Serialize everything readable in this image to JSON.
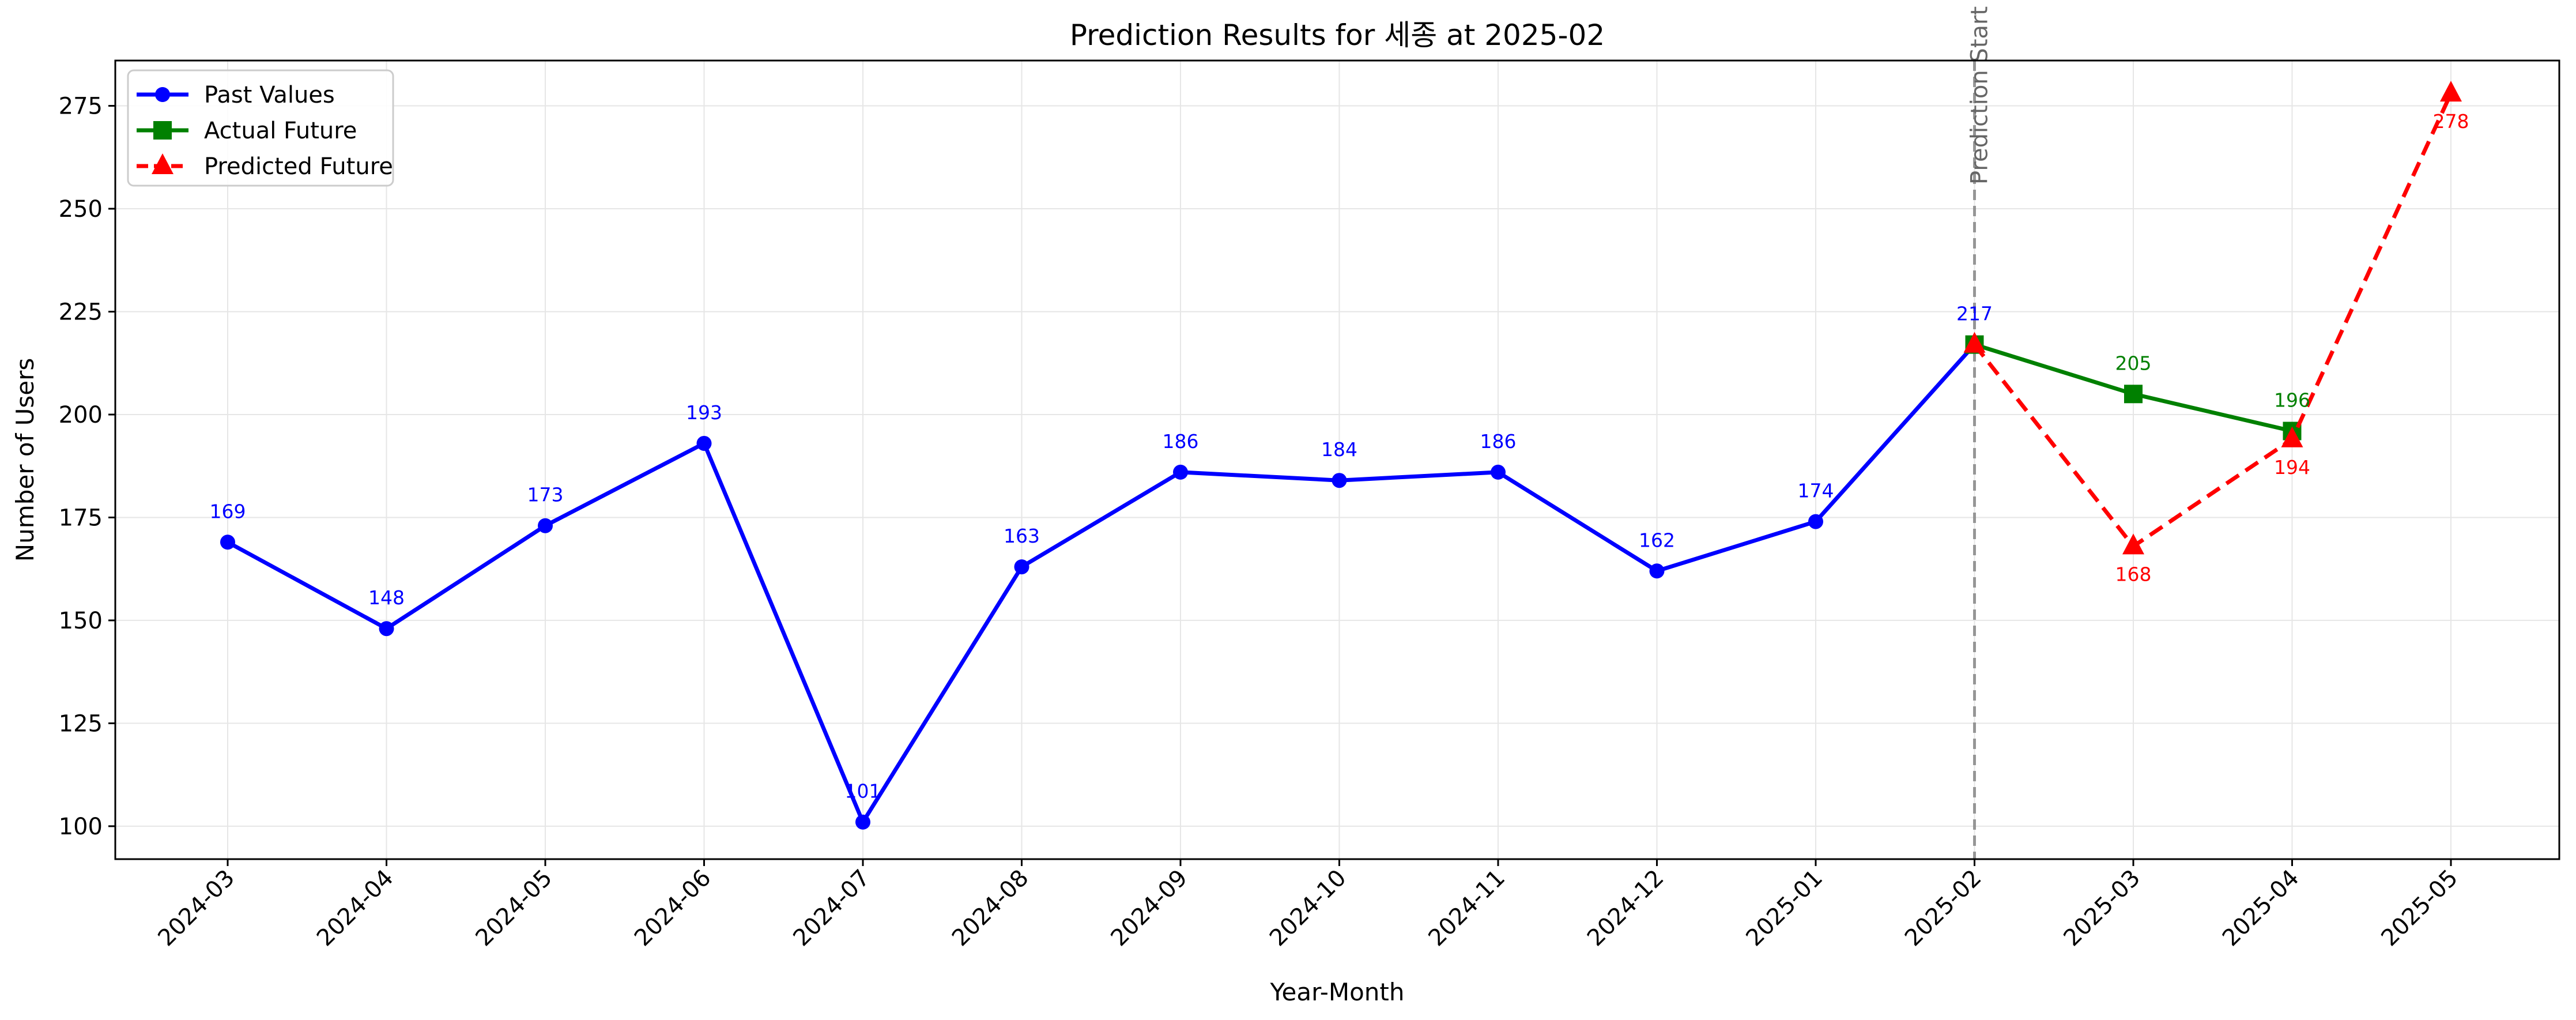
{
  "chart_data": {
    "type": "line",
    "title": "Prediction Results for 세종 at 2025-02",
    "xlabel": "Year-Month",
    "ylabel": "Number of Users",
    "categories": [
      "2024-03",
      "2024-04",
      "2024-05",
      "2024-06",
      "2024-07",
      "2024-08",
      "2024-09",
      "2024-10",
      "2024-11",
      "2024-12",
      "2025-01",
      "2025-02",
      "2025-03",
      "2025-04",
      "2025-05"
    ],
    "ylim": [
      92,
      286
    ],
    "yticks": [
      100,
      125,
      150,
      175,
      200,
      225,
      250,
      275
    ],
    "grid": true,
    "legend_position": "top-left",
    "series": [
      {
        "name": "Past Values",
        "color": "#0000ff",
        "marker": "circle",
        "linestyle": "solid",
        "x": [
          "2024-03",
          "2024-04",
          "2024-05",
          "2024-06",
          "2024-07",
          "2024-08",
          "2024-09",
          "2024-10",
          "2024-11",
          "2024-12",
          "2025-01",
          "2025-02"
        ],
        "values": [
          169,
          148,
          173,
          193,
          101,
          163,
          186,
          184,
          186,
          162,
          174,
          217
        ],
        "labels": [
          "169",
          "148",
          "173",
          "193",
          "101",
          "163",
          "186",
          "184",
          "186",
          "162",
          "174",
          "217"
        ],
        "label_position": "above"
      },
      {
        "name": "Actual Future",
        "color": "#008000",
        "marker": "square",
        "linestyle": "solid",
        "x": [
          "2025-02",
          "2025-03",
          "2025-04"
        ],
        "values": [
          217,
          205,
          196
        ],
        "labels": [
          "",
          "205",
          "196"
        ],
        "label_position": "above"
      },
      {
        "name": "Predicted Future",
        "color": "#ff0000",
        "marker": "triangle",
        "linestyle": "dashed",
        "x": [
          "2025-02",
          "2025-03",
          "2025-04",
          "2025-05"
        ],
        "values": [
          217,
          168,
          194,
          278
        ],
        "labels": [
          "",
          "168",
          "194",
          "278"
        ],
        "label_position": "below"
      }
    ],
    "vline": {
      "x": "2025-02",
      "label": "Prediction Start",
      "color": "#808080",
      "linestyle": "dashed"
    }
  }
}
